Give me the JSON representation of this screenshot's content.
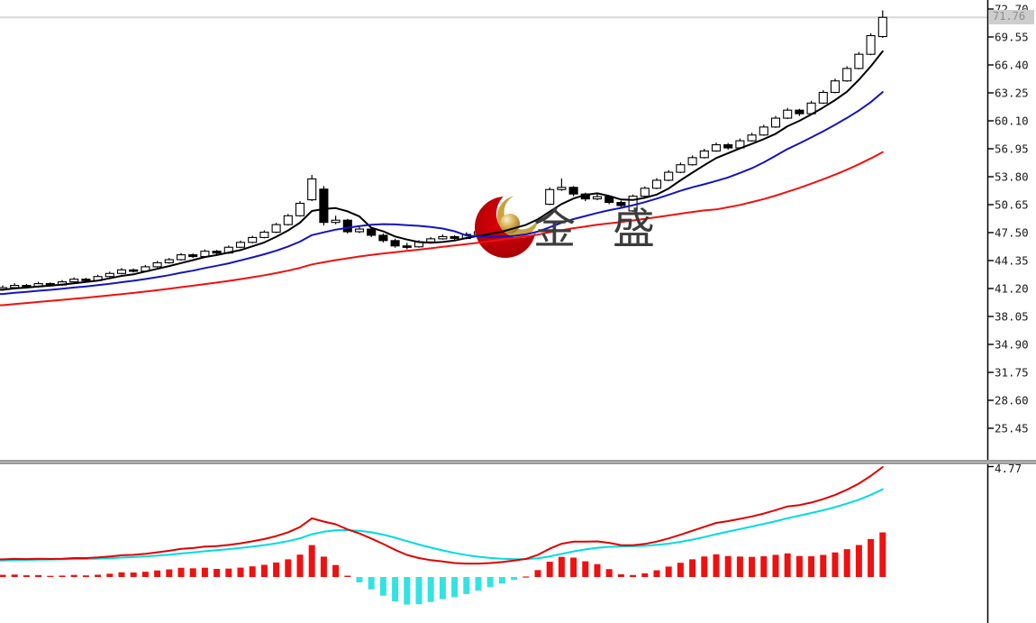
{
  "colors": {
    "ma_fast": "#000000",
    "ma_mid": "#1414c0",
    "ma_slow": "#f01010",
    "macd_dif": "#e00000",
    "macd_dea": "#00dcdc",
    "hist_up": "#ee1111",
    "hist_down": "#33e3e3",
    "candle_up_fill": "#ffffff",
    "candle_down_fill": "#000000",
    "candle_border": "#000000",
    "current_price_line": "#d8d8d8",
    "axis_line": "#000000",
    "tick_text": "#1a1a1a",
    "badge_bg": "#cdcdcd",
    "badge_text": "#8e8e8e",
    "watermark_text_color": "#3c3c3c",
    "logo_red": "#c40008",
    "logo_gold": "#c8a33b"
  },
  "chart_data": {
    "type": "candlestick+macd",
    "watermark_text": "金 盛",
    "price_pane": {
      "y_tick_labels": [
        "72.70",
        "69.55",
        "66.40",
        "63.25",
        "60.10",
        "56.95",
        "53.80",
        "50.65",
        "47.50",
        "44.35",
        "41.20",
        "38.05",
        "34.90",
        "31.75",
        "28.60",
        "25.45"
      ],
      "tick_step": 3.15,
      "current_price_label": "71.76",
      "current_price": 71.76,
      "moving_averages": [
        {
          "period": 5,
          "color_key": "ma_fast"
        },
        {
          "period": 13,
          "color_key": "ma_mid"
        },
        {
          "period": 34,
          "color_key": "ma_slow"
        }
      ],
      "candles_ohlc": [
        [
          41.1,
          41.55,
          40.95,
          41.3
        ],
        [
          41.3,
          41.8,
          41.2,
          41.55
        ],
        [
          41.55,
          41.7,
          41.25,
          41.4
        ],
        [
          41.4,
          41.95,
          41.3,
          41.75
        ],
        [
          41.75,
          41.9,
          41.45,
          41.6
        ],
        [
          41.6,
          42.15,
          41.5,
          41.95
        ],
        [
          41.95,
          42.45,
          41.85,
          42.25
        ],
        [
          42.25,
          42.4,
          41.95,
          42.1
        ],
        [
          42.1,
          42.75,
          42.0,
          42.55
        ],
        [
          42.55,
          43.1,
          42.45,
          42.9
        ],
        [
          42.9,
          43.5,
          42.8,
          43.3
        ],
        [
          43.3,
          43.45,
          43.0,
          43.15
        ],
        [
          43.15,
          43.85,
          43.05,
          43.65
        ],
        [
          43.65,
          44.3,
          43.55,
          44.1
        ],
        [
          44.1,
          44.65,
          44.0,
          44.45
        ],
        [
          44.45,
          45.2,
          44.35,
          45.0
        ],
        [
          45.0,
          45.15,
          44.65,
          44.8
        ],
        [
          44.8,
          45.6,
          44.7,
          45.4
        ],
        [
          45.4,
          45.55,
          45.05,
          45.2
        ],
        [
          45.2,
          46.05,
          45.1,
          45.85
        ],
        [
          45.85,
          46.6,
          45.75,
          46.4
        ],
        [
          46.4,
          47.15,
          46.3,
          46.95
        ],
        [
          46.95,
          47.75,
          46.85,
          47.55
        ],
        [
          47.55,
          48.6,
          47.45,
          48.4
        ],
        [
          48.4,
          49.6,
          48.3,
          49.4
        ],
        [
          49.4,
          51.05,
          49.3,
          50.8
        ],
        [
          51.2,
          54.0,
          51.05,
          53.55
        ],
        [
          52.4,
          52.75,
          48.3,
          48.65
        ],
        [
          48.65,
          49.4,
          48.45,
          48.9
        ],
        [
          48.9,
          49.05,
          47.4,
          47.6
        ],
        [
          47.6,
          48.15,
          47.45,
          47.9
        ],
        [
          47.9,
          48.05,
          47.0,
          47.2
        ],
        [
          47.2,
          47.4,
          46.4,
          46.6
        ],
        [
          46.6,
          46.8,
          45.8,
          46.0
        ],
        [
          46.0,
          46.35,
          45.6,
          45.9
        ],
        [
          45.9,
          46.65,
          45.8,
          46.45
        ],
        [
          46.45,
          47.0,
          46.3,
          46.8
        ],
        [
          46.8,
          47.3,
          46.7,
          47.05
        ],
        [
          47.05,
          47.2,
          46.65,
          46.85
        ],
        [
          46.85,
          47.55,
          46.75,
          47.3
        ],
        [
          47.3,
          47.8,
          47.2,
          47.6
        ],
        [
          47.6,
          48.2,
          47.5,
          47.95
        ],
        [
          47.95,
          48.55,
          47.85,
          48.35
        ],
        [
          48.35,
          48.95,
          48.25,
          48.75
        ],
        [
          48.75,
          49.4,
          48.65,
          49.2
        ],
        [
          49.2,
          50.95,
          49.1,
          50.7
        ],
        [
          50.7,
          52.6,
          50.6,
          52.35
        ],
        [
          52.35,
          53.6,
          52.2,
          52.6
        ],
        [
          52.6,
          52.75,
          51.6,
          51.85
        ],
        [
          51.85,
          52.0,
          51.05,
          51.3
        ],
        [
          51.3,
          51.85,
          51.15,
          51.55
        ],
        [
          51.55,
          51.7,
          50.7,
          50.9
        ],
        [
          50.9,
          51.1,
          50.3,
          50.55
        ],
        [
          49.95,
          51.8,
          49.85,
          51.6
        ],
        [
          51.6,
          52.7,
          51.45,
          52.5
        ],
        [
          52.5,
          53.65,
          52.4,
          53.4
        ],
        [
          53.4,
          54.55,
          53.3,
          54.3
        ],
        [
          54.3,
          55.4,
          54.2,
          55.15
        ],
        [
          55.15,
          56.2,
          55.05,
          55.95
        ],
        [
          55.95,
          56.95,
          55.85,
          56.7
        ],
        [
          56.7,
          57.65,
          56.6,
          57.4
        ],
        [
          57.4,
          57.6,
          56.85,
          57.05
        ],
        [
          57.05,
          58.1,
          56.95,
          57.85
        ],
        [
          57.85,
          58.75,
          57.75,
          58.5
        ],
        [
          58.5,
          59.65,
          58.4,
          59.4
        ],
        [
          59.4,
          60.65,
          59.3,
          60.4
        ],
        [
          60.4,
          61.55,
          60.3,
          61.3
        ],
        [
          61.3,
          61.45,
          60.65,
          60.9
        ],
        [
          60.9,
          62.35,
          60.8,
          62.1
        ],
        [
          62.1,
          63.55,
          62.0,
          63.3
        ],
        [
          63.3,
          64.85,
          63.2,
          64.6
        ],
        [
          64.6,
          66.25,
          64.5,
          66.0
        ],
        [
          66.0,
          67.85,
          65.9,
          67.6
        ],
        [
          67.6,
          69.95,
          67.5,
          69.7
        ],
        [
          69.6,
          72.55,
          69.45,
          71.76
        ]
      ]
    },
    "indicator_pane": {
      "name": "MACD",
      "params": {
        "fast": 12,
        "slow": 26,
        "signal": 9
      },
      "top_label": "4.77",
      "derived_from": "closes of price_pane.candles_ohlc"
    }
  }
}
